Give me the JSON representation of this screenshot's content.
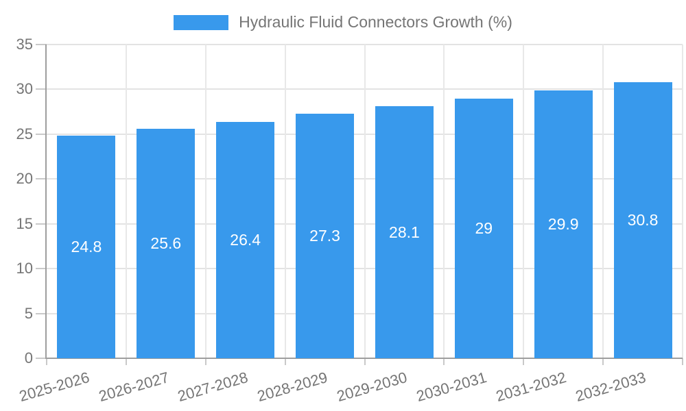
{
  "chart_data": {
    "type": "bar",
    "title": "Hydraulic Fluid Connectors Growth (%)",
    "categories": [
      "2025-2026",
      "2026-2027",
      "2027-2028",
      "2028-2029",
      "2029-2030",
      "2030-2031",
      "2031-2032",
      "2032-2033"
    ],
    "values": [
      24.8,
      25.6,
      26.4,
      27.3,
      28.1,
      29,
      29.9,
      30.8
    ],
    "xlabel": "",
    "ylabel": "",
    "ylim": [
      0,
      35
    ],
    "yticks": [
      0,
      5,
      10,
      15,
      20,
      25,
      30,
      35
    ],
    "grid": true,
    "legend_position": "top",
    "x_label_rotation_deg": -16,
    "colors": {
      "bar": "#3899ec",
      "value_label": "#ffffff",
      "axis_line": "#9e9e9e",
      "grid_line": "#e3e3e3",
      "grid_line_vertical": "#e8e8e8",
      "tick_mark": "#c9c9c9",
      "axis_text": "#757575",
      "legend_text": "#757575"
    }
  }
}
